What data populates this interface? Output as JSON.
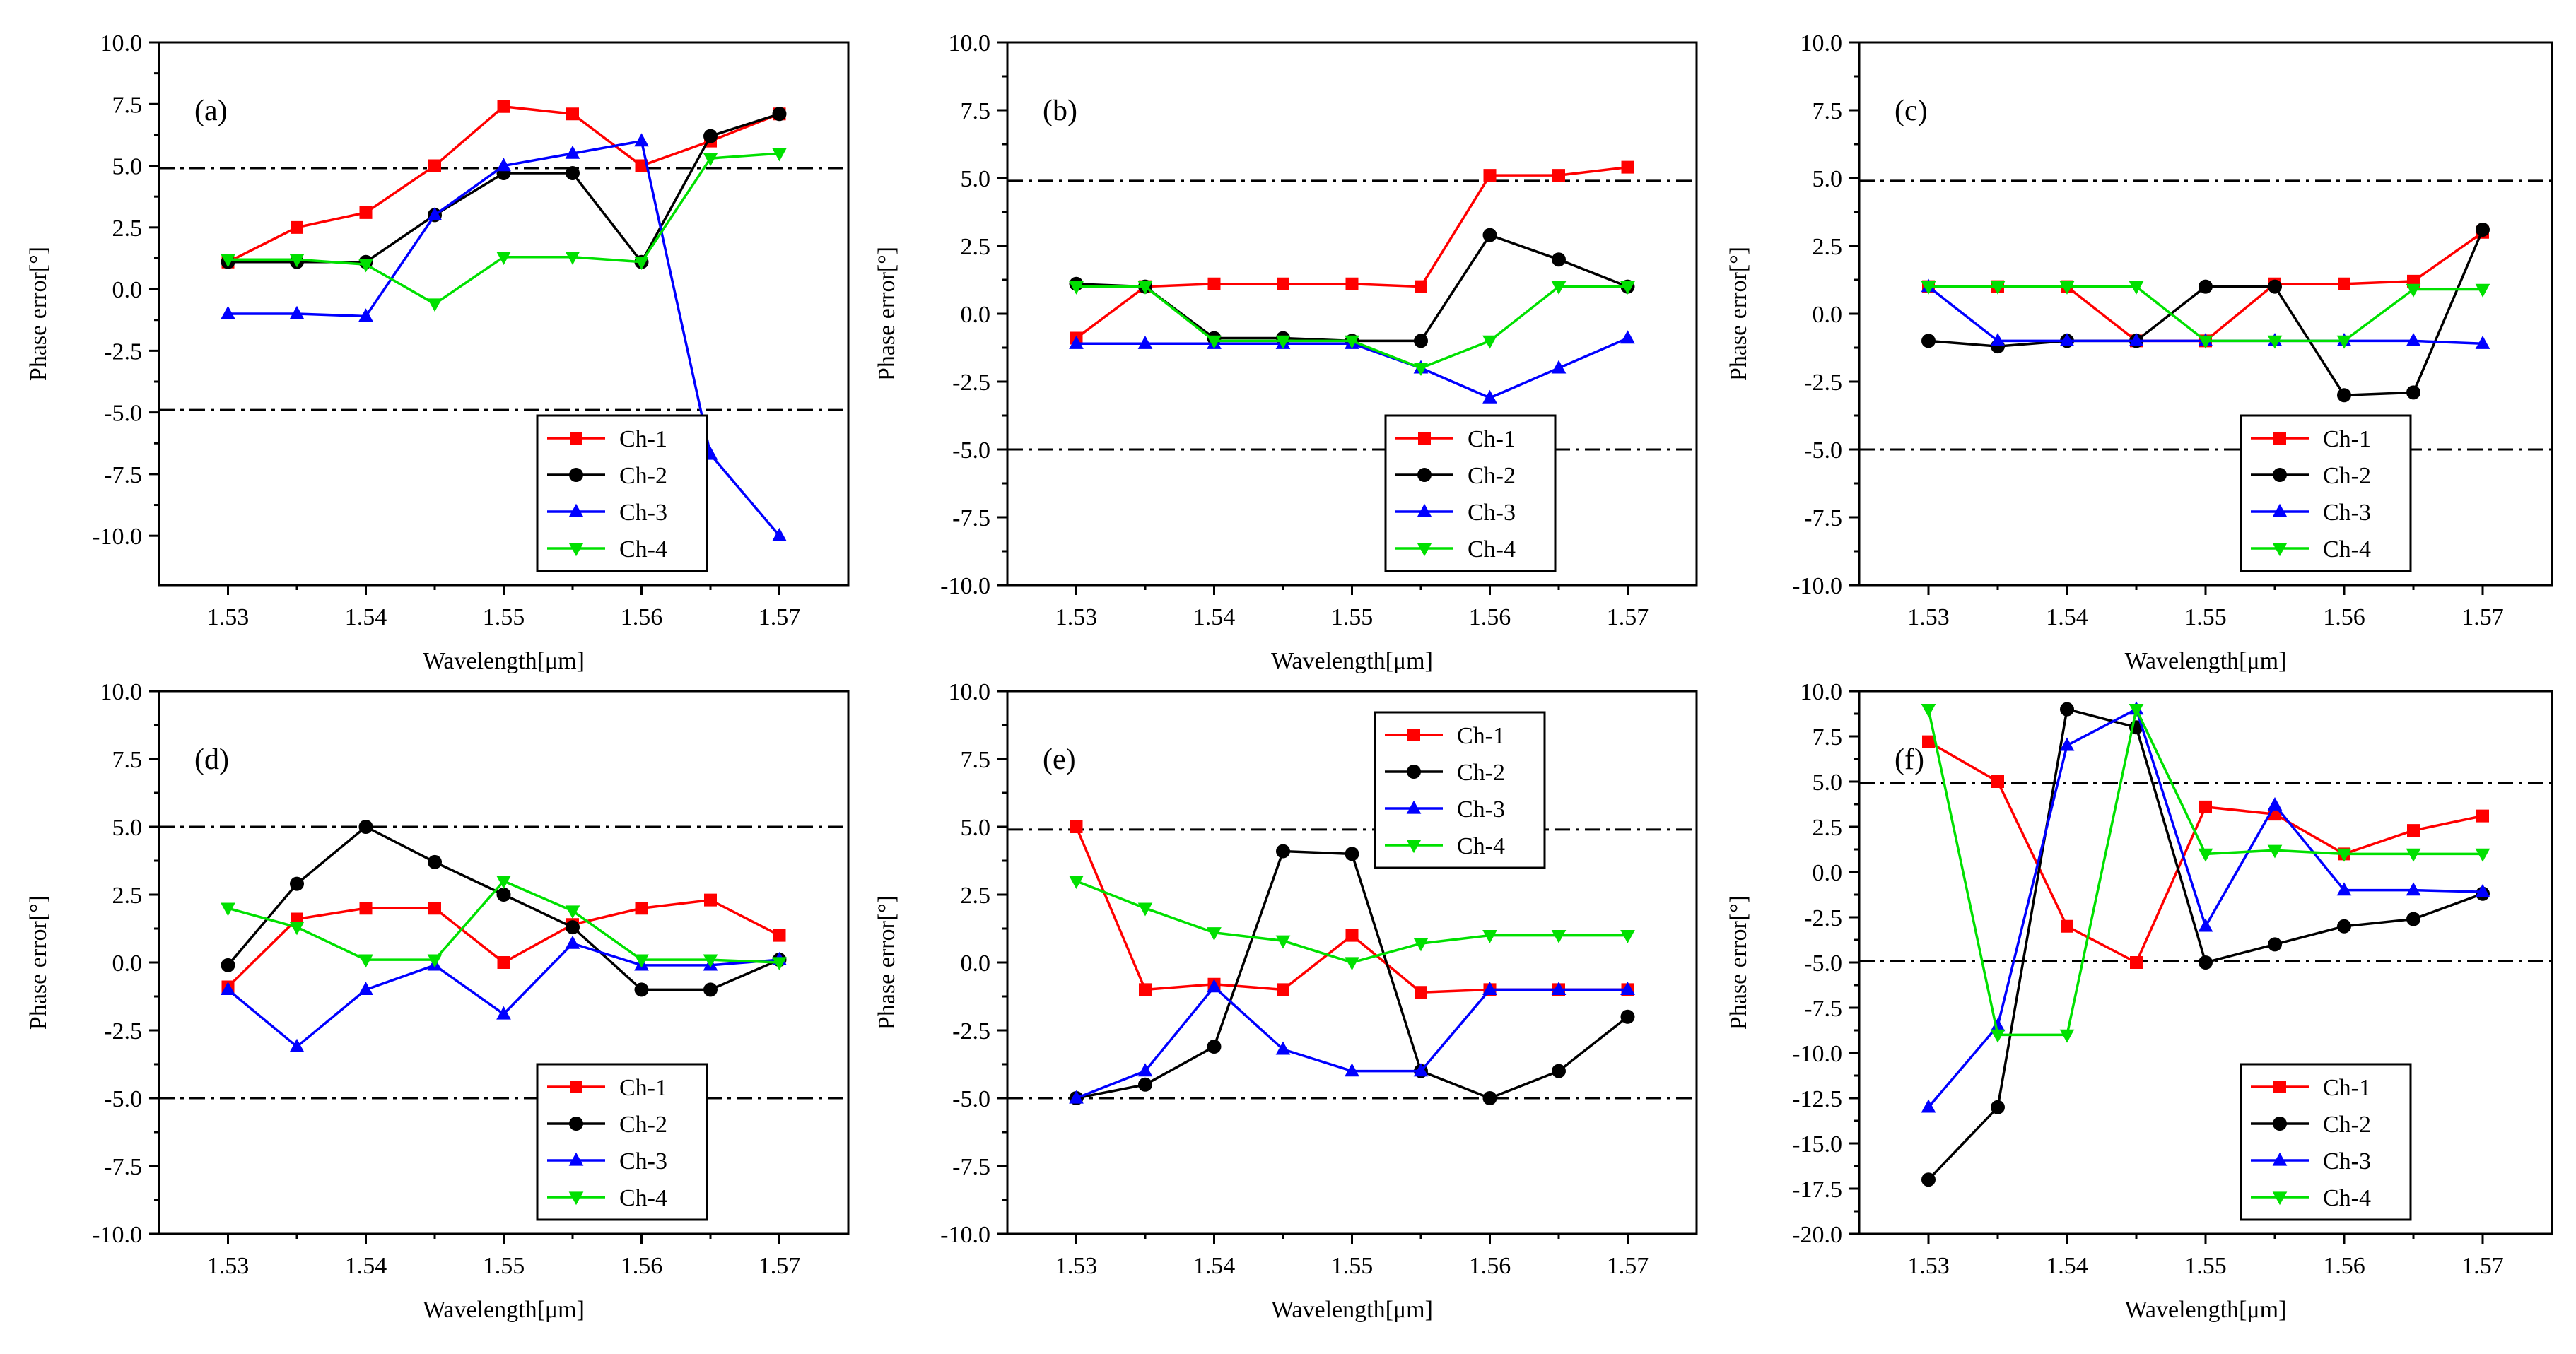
{
  "chart_data": [
    {
      "type": "line",
      "panel_label": "(a)",
      "xlabel": "Wavelength[μm]",
      "ylabel": "Phase error[°]",
      "x": [
        1.53,
        1.535,
        1.54,
        1.545,
        1.55,
        1.555,
        1.56,
        1.565,
        1.57
      ],
      "xticks": [
        "1.53",
        "1.54",
        "1.55",
        "1.56",
        "1.57"
      ],
      "xlim": [
        1.525,
        1.575
      ],
      "ylim": [
        -12,
        10
      ],
      "yticks": [
        "10.0",
        "7.5",
        "5.0",
        "2.5",
        "0.0",
        "-2.5",
        "-5.0",
        "-7.5",
        "-10.0"
      ],
      "ref_lines": [
        4.9,
        -4.9
      ],
      "legend_position": "bottom-right",
      "series": [
        {
          "name": "Ch-1",
          "color": "#ff0000",
          "marker": "square",
          "values": [
            1.1,
            2.5,
            3.1,
            5.0,
            7.4,
            7.1,
            5.0,
            6.0,
            7.1
          ]
        },
        {
          "name": "Ch-2",
          "color": "#000000",
          "marker": "circle",
          "values": [
            1.1,
            1.1,
            1.1,
            3.0,
            4.7,
            4.7,
            1.1,
            6.2,
            7.1
          ]
        },
        {
          "name": "Ch-3",
          "color": "#0000ff",
          "marker": "triangle-up",
          "values": [
            -1.0,
            -1.0,
            -1.1,
            3.0,
            5.0,
            5.5,
            6.0,
            -6.7,
            -10.0
          ]
        },
        {
          "name": "Ch-4",
          "color": "#00e000",
          "marker": "triangle-down",
          "values": [
            1.2,
            1.2,
            1.0,
            -0.6,
            1.3,
            1.3,
            1.1,
            5.3,
            5.5
          ]
        }
      ]
    },
    {
      "type": "line",
      "panel_label": "(b)",
      "xlabel": "Wavelength[μm]",
      "ylabel": "Phase error[°]",
      "x": [
        1.53,
        1.535,
        1.54,
        1.545,
        1.55,
        1.555,
        1.56,
        1.565,
        1.57
      ],
      "xticks": [
        "1.53",
        "1.54",
        "1.55",
        "1.56",
        "1.57"
      ],
      "xlim": [
        1.525,
        1.575
      ],
      "ylim": [
        -10,
        10
      ],
      "yticks": [
        "10.0",
        "7.5",
        "5.0",
        "2.5",
        "0.0",
        "-2.5",
        "-5.0",
        "-7.5",
        "-10.0"
      ],
      "ref_lines": [
        4.9,
        -5.0
      ],
      "legend_position": "bottom-right",
      "series": [
        {
          "name": "Ch-1",
          "color": "#ff0000",
          "marker": "square",
          "values": [
            -0.9,
            1.0,
            1.1,
            1.1,
            1.1,
            1.0,
            5.1,
            5.1,
            5.4
          ]
        },
        {
          "name": "Ch-2",
          "color": "#000000",
          "marker": "circle",
          "values": [
            1.1,
            1.0,
            -0.9,
            -0.9,
            -1.0,
            -1.0,
            2.9,
            2.0,
            1.0
          ]
        },
        {
          "name": "Ch-3",
          "color": "#0000ff",
          "marker": "triangle-up",
          "values": [
            -1.1,
            -1.1,
            -1.1,
            -1.1,
            -1.1,
            -2.0,
            -3.1,
            -2.0,
            -0.9
          ]
        },
        {
          "name": "Ch-4",
          "color": "#00e000",
          "marker": "triangle-down",
          "values": [
            1.0,
            1.0,
            -1.0,
            -1.0,
            -1.0,
            -2.0,
            -1.0,
            1.0,
            1.0
          ]
        }
      ]
    },
    {
      "type": "line",
      "panel_label": "(c)",
      "xlabel": "Wavelength[μm]",
      "ylabel": "Phase error[°]",
      "x": [
        1.53,
        1.535,
        1.54,
        1.545,
        1.55,
        1.555,
        1.56,
        1.565,
        1.57
      ],
      "xticks": [
        "1.53",
        "1.54",
        "1.55",
        "1.56",
        "1.57"
      ],
      "xlim": [
        1.525,
        1.575
      ],
      "ylim": [
        -10,
        10
      ],
      "yticks": [
        "10.0",
        "7.5",
        "5.0",
        "2.5",
        "0.0",
        "-2.5",
        "-5.0",
        "-7.5",
        "-10.0"
      ],
      "ref_lines": [
        4.9,
        -5.0
      ],
      "legend_position": "bottom-right",
      "series": [
        {
          "name": "Ch-1",
          "color": "#ff0000",
          "marker": "square",
          "values": [
            1.0,
            1.0,
            1.0,
            -1.0,
            -1.0,
            1.1,
            1.1,
            1.2,
            3.0
          ]
        },
        {
          "name": "Ch-2",
          "color": "#000000",
          "marker": "circle",
          "values": [
            -1.0,
            -1.2,
            -1.0,
            -1.0,
            1.0,
            1.0,
            -3.0,
            -2.9,
            3.1
          ]
        },
        {
          "name": "Ch-3",
          "color": "#0000ff",
          "marker": "triangle-up",
          "values": [
            1.0,
            -1.0,
            -1.0,
            -1.0,
            -1.0,
            -1.0,
            -1.0,
            -1.0,
            -1.1
          ]
        },
        {
          "name": "Ch-4",
          "color": "#00e000",
          "marker": "triangle-down",
          "values": [
            1.0,
            1.0,
            1.0,
            1.0,
            -1.0,
            -1.0,
            -1.0,
            0.9,
            0.9
          ]
        }
      ]
    },
    {
      "type": "line",
      "panel_label": "(d)",
      "xlabel": "Wavelength[μm]",
      "ylabel": "Phase error[°]",
      "x": [
        1.53,
        1.535,
        1.54,
        1.545,
        1.55,
        1.555,
        1.56,
        1.565,
        1.57
      ],
      "xticks": [
        "1.53",
        "1.54",
        "1.55",
        "1.56",
        "1.57"
      ],
      "xlim": [
        1.525,
        1.575
      ],
      "ylim": [
        -10,
        10
      ],
      "yticks": [
        "10.0",
        "7.5",
        "5.0",
        "2.5",
        "0.0",
        "-2.5",
        "-5.0",
        "-7.5",
        "-10.0"
      ],
      "ref_lines": [
        5.0,
        -5.0
      ],
      "legend_position": "bottom-right",
      "series": [
        {
          "name": "Ch-1",
          "color": "#ff0000",
          "marker": "square",
          "values": [
            -0.9,
            1.6,
            2.0,
            2.0,
            0.0,
            1.4,
            2.0,
            2.3,
            1.0
          ]
        },
        {
          "name": "Ch-2",
          "color": "#000000",
          "marker": "circle",
          "values": [
            -0.1,
            2.9,
            5.0,
            3.7,
            2.5,
            1.3,
            -1.0,
            -1.0,
            0.1
          ]
        },
        {
          "name": "Ch-3",
          "color": "#0000ff",
          "marker": "triangle-up",
          "values": [
            -1.0,
            -3.1,
            -1.0,
            -0.1,
            -1.9,
            0.7,
            -0.1,
            -0.1,
            0.1
          ]
        },
        {
          "name": "Ch-4",
          "color": "#00e000",
          "marker": "triangle-down",
          "values": [
            2.0,
            1.3,
            0.1,
            0.1,
            3.0,
            1.9,
            0.1,
            0.1,
            0.0
          ]
        }
      ]
    },
    {
      "type": "line",
      "panel_label": "(e)",
      "xlabel": "Wavelength[μm]",
      "ylabel": "Phase error[°]",
      "x": [
        1.53,
        1.535,
        1.54,
        1.545,
        1.55,
        1.555,
        1.56,
        1.565,
        1.57
      ],
      "xticks": [
        "1.53",
        "1.54",
        "1.55",
        "1.56",
        "1.57"
      ],
      "xlim": [
        1.525,
        1.575
      ],
      "ylim": [
        -10,
        10
      ],
      "yticks": [
        "10.0",
        "7.5",
        "5.0",
        "2.5",
        "0.0",
        "-2.5",
        "-5.0",
        "-7.5",
        "-10.0"
      ],
      "ref_lines": [
        4.9,
        -5.0
      ],
      "legend_position": "top-right",
      "series": [
        {
          "name": "Ch-1",
          "color": "#ff0000",
          "marker": "square",
          "values": [
            5.0,
            -1.0,
            -0.8,
            -1.0,
            1.0,
            -1.1,
            -1.0,
            -1.0,
            -1.0
          ]
        },
        {
          "name": "Ch-2",
          "color": "#000000",
          "marker": "circle",
          "values": [
            -5.0,
            -4.5,
            -3.1,
            4.1,
            4.0,
            -4.0,
            -5.0,
            -4.0,
            -2.0
          ]
        },
        {
          "name": "Ch-3",
          "color": "#0000ff",
          "marker": "triangle-up",
          "values": [
            -5.0,
            -4.0,
            -0.9,
            -3.2,
            -4.0,
            -4.0,
            -1.0,
            -1.0,
            -1.0
          ]
        },
        {
          "name": "Ch-4",
          "color": "#00e000",
          "marker": "triangle-down",
          "values": [
            3.0,
            2.0,
            1.1,
            0.8,
            0.0,
            0.7,
            1.0,
            1.0,
            1.0
          ]
        }
      ]
    },
    {
      "type": "line",
      "panel_label": "(f)",
      "xlabel": "Wavelength[μm]",
      "ylabel": "Phase error[°]",
      "x": [
        1.53,
        1.535,
        1.54,
        1.545,
        1.55,
        1.555,
        1.56,
        1.565,
        1.57
      ],
      "xticks": [
        "1.53",
        "1.54",
        "1.55",
        "1.56",
        "1.57"
      ],
      "xlim": [
        1.525,
        1.575
      ],
      "ylim": [
        -20,
        10
      ],
      "yticks": [
        "10.0",
        "7.5",
        "5.0",
        "2.5",
        "0.0",
        "-2.5",
        "-5.0",
        "-7.5",
        "-10.0",
        "-12.5",
        "-15.0",
        "-17.5",
        "-20.0"
      ],
      "ref_lines": [
        4.9,
        -4.9
      ],
      "legend_position": "bottom-right",
      "series": [
        {
          "name": "Ch-1",
          "color": "#ff0000",
          "marker": "square",
          "values": [
            7.2,
            5.0,
            -3.0,
            -5.0,
            3.6,
            3.2,
            1.0,
            2.3,
            3.1
          ]
        },
        {
          "name": "Ch-2",
          "color": "#000000",
          "marker": "circle",
          "values": [
            -17.0,
            -13.0,
            9.0,
            8.0,
            -5.0,
            -4.0,
            -3.0,
            -2.6,
            -1.2
          ]
        },
        {
          "name": "Ch-3",
          "color": "#0000ff",
          "marker": "triangle-up",
          "values": [
            -13.0,
            -8.5,
            7.0,
            9.0,
            -3.0,
            3.7,
            -1.0,
            -1.0,
            -1.1
          ]
        },
        {
          "name": "Ch-4",
          "color": "#00e000",
          "marker": "triangle-down",
          "values": [
            9.0,
            -9.0,
            -9.0,
            9.0,
            1.0,
            1.2,
            1.0,
            1.0,
            1.0
          ]
        }
      ]
    }
  ]
}
